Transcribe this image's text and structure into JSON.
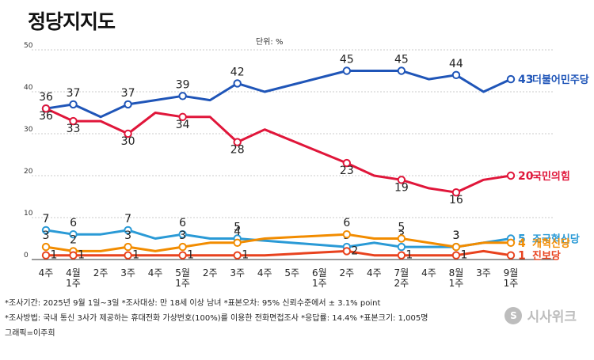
{
  "title": "정당지지도",
  "unit": "단위: %",
  "notes": [
    "*조사기간: 2025년 9월 1일~3일  *조사대상: 만 18세 이상 남녀  *표본오차: 95% 신뢰수준에서 ± 3.1% point",
    "*조사방법: 국내 통신 3사가 제공하는 휴대전화 가상번호(100%)를 이용한 전화면접조사 *응답률: 14.4%  *표본크기: 1,005명",
    "그래픽=이주희"
  ],
  "logo": {
    "text": "시사위크",
    "icon": "sisaweek-logo-icon"
  },
  "chart_data": {
    "type": "line",
    "ylim": [
      0,
      50
    ],
    "yticks": [
      0,
      10,
      20,
      30,
      40,
      50
    ],
    "grid": true,
    "legend": "right-end-labels",
    "x_labels": [
      [
        "4주"
      ],
      [
        "4월",
        "1주"
      ],
      [
        "2주"
      ],
      [
        "3주"
      ],
      [
        "4주"
      ],
      [
        "5월",
        "1주"
      ],
      [
        "2주"
      ],
      [
        "3주"
      ],
      [
        "4주"
      ],
      [
        "5주"
      ],
      [
        "6월",
        "1주"
      ],
      [
        "2주"
      ],
      [
        "4주"
      ],
      [
        "7월",
        "2주"
      ],
      [
        "4주"
      ],
      [
        "8월",
        "1주"
      ],
      [
        "3주"
      ],
      [
        "9월",
        "1주"
      ]
    ],
    "series": [
      {
        "name": "더불어민주당",
        "color": "#1f55b8",
        "values": [
          36,
          37,
          34,
          37,
          38,
          39,
          38,
          42,
          40,
          null,
          null,
          45,
          null,
          45,
          43,
          44,
          40,
          43
        ],
        "labels": [
          36,
          37,
          null,
          37,
          null,
          39,
          null,
          42,
          null,
          null,
          null,
          45,
          null,
          45,
          null,
          44,
          null,
          43
        ],
        "end_label": "더불어민주당"
      },
      {
        "name": "국민의힘",
        "color": "#e0163a",
        "values": [
          36,
          33,
          33,
          30,
          35,
          34,
          34,
          28,
          31,
          null,
          null,
          23,
          20,
          19,
          17,
          16,
          19,
          20
        ],
        "labels": [
          36,
          33,
          null,
          30,
          null,
          34,
          null,
          28,
          null,
          null,
          null,
          23,
          null,
          19,
          null,
          16,
          null,
          20
        ],
        "end_label": "국민의힘"
      },
      {
        "name": "조국혁신당",
        "color": "#2a9ad6",
        "values": [
          7,
          6,
          6,
          7,
          5,
          6,
          5,
          5,
          null,
          null,
          null,
          3,
          4,
          3,
          null,
          3,
          null,
          5
        ],
        "labels": [
          7,
          6,
          null,
          7,
          null,
          6,
          null,
          5,
          null,
          null,
          null,
          3,
          null,
          3,
          null,
          3,
          null,
          5
        ],
        "end_label": "조국혁신당"
      },
      {
        "name": "개혁신당",
        "color": "#f28c00",
        "values": [
          3,
          2,
          2,
          3,
          2,
          3,
          4,
          4,
          5,
          null,
          null,
          6,
          5,
          5,
          null,
          3,
          4,
          4
        ],
        "labels": [
          3,
          2,
          null,
          3,
          null,
          3,
          null,
          4,
          null,
          null,
          null,
          6,
          null,
          5,
          null,
          3,
          null,
          4
        ],
        "end_label": "개혁신당"
      },
      {
        "name": "진보당",
        "color": "#e8421e",
        "values": [
          1,
          1,
          1,
          1,
          1,
          1,
          1,
          1,
          1,
          null,
          null,
          2,
          1,
          1,
          1,
          1,
          2,
          1
        ],
        "labels": [
          1,
          1,
          null,
          1,
          null,
          1,
          null,
          1,
          null,
          null,
          null,
          2,
          null,
          1,
          null,
          1,
          null,
          1
        ],
        "end_label": "진보당"
      }
    ]
  }
}
